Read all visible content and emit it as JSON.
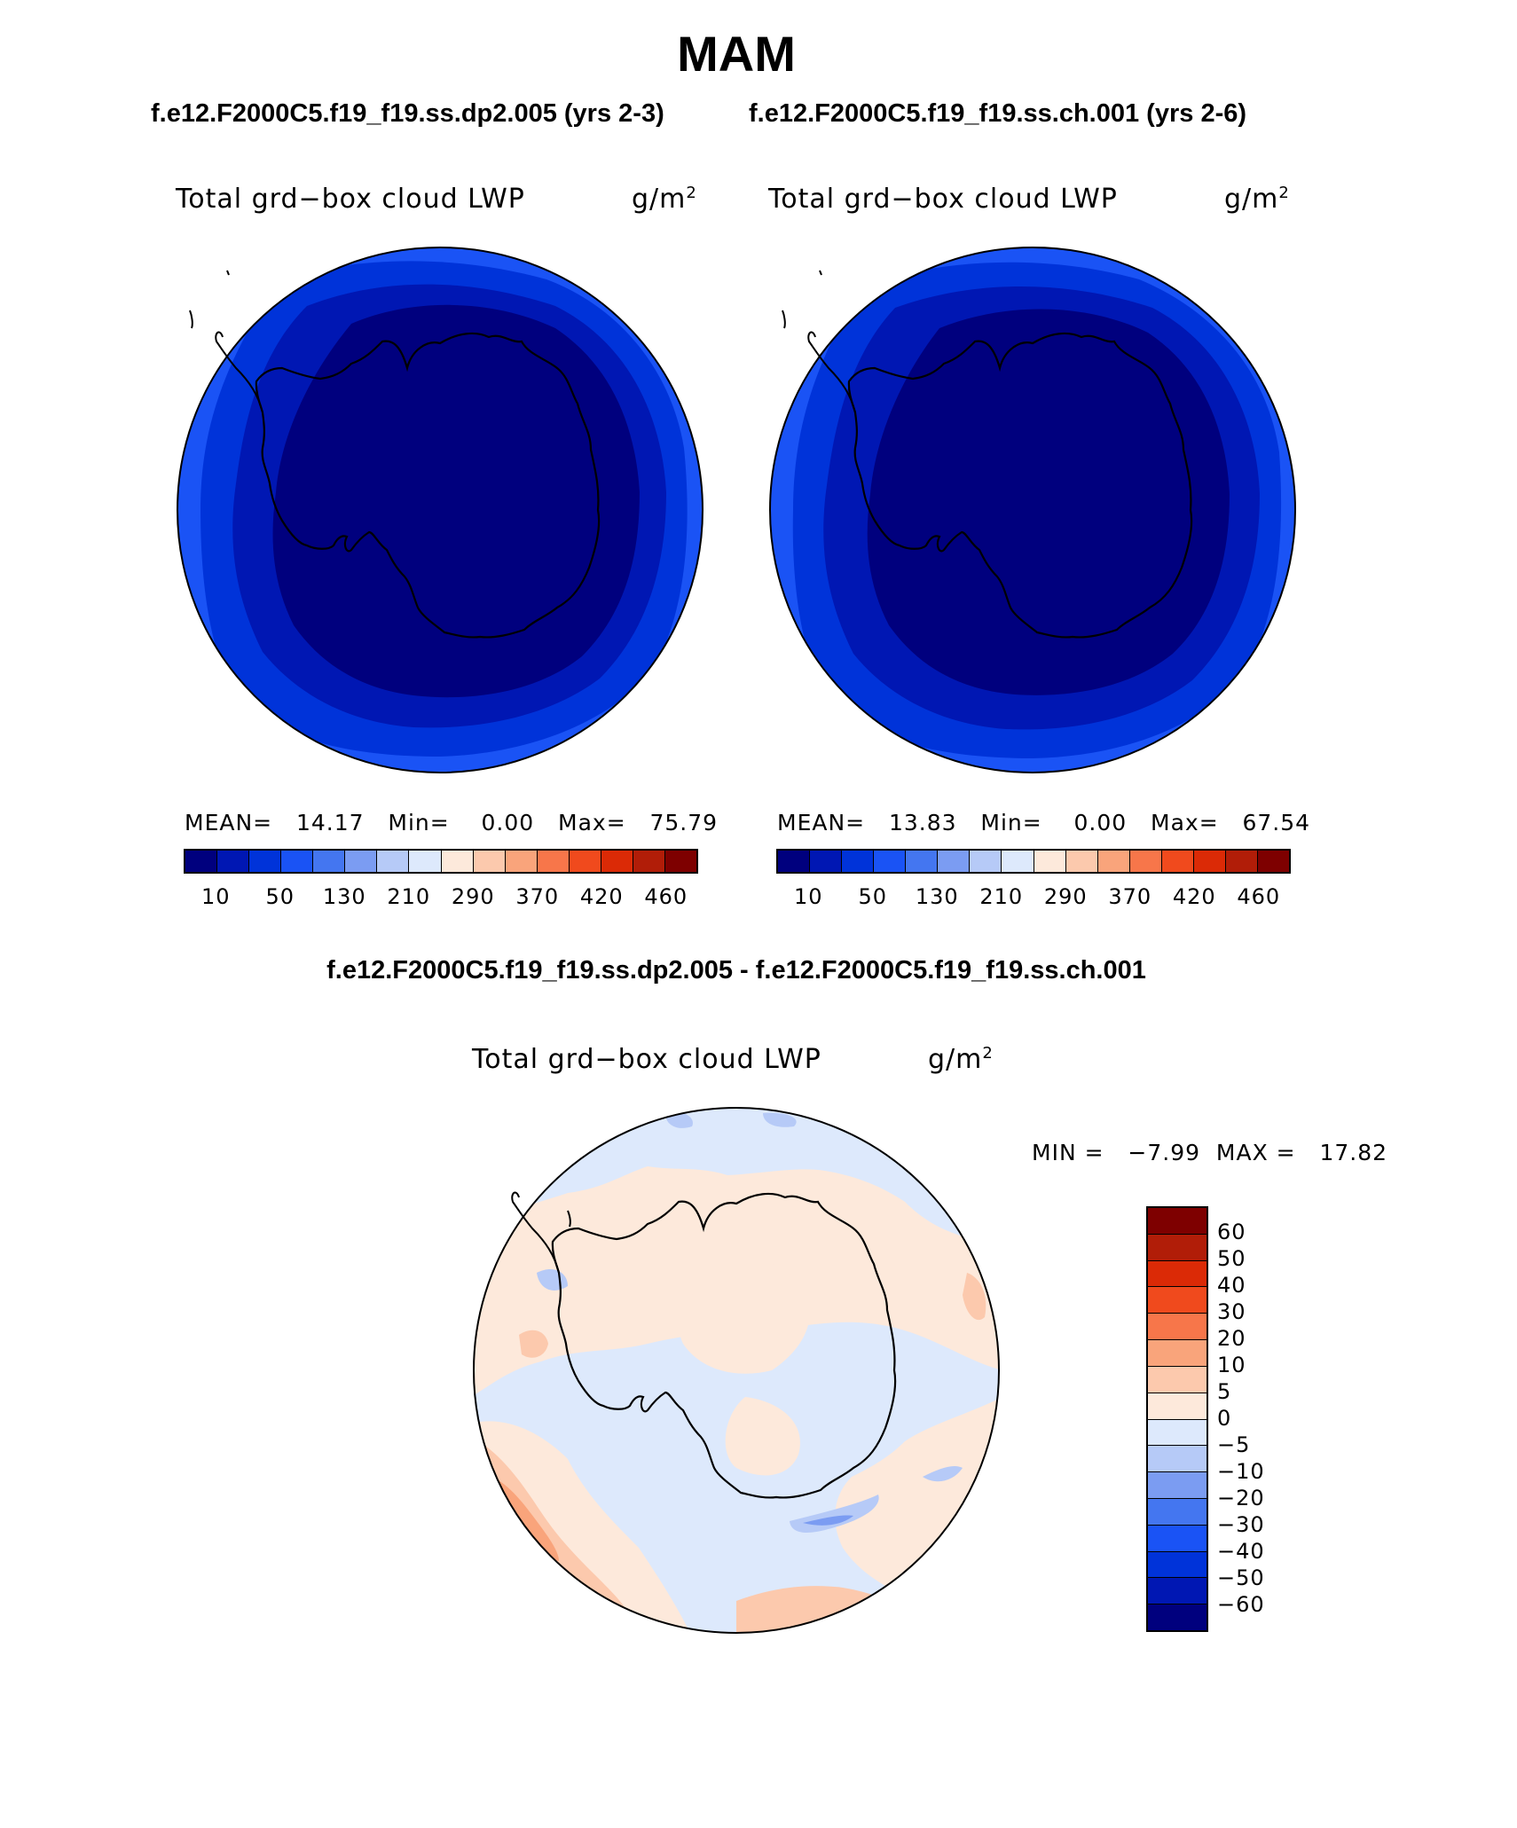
{
  "header": {
    "season": "MAM",
    "case_left": "f.e12.F2000C5.f19_f19.ss.dp2.005 (yrs 2-3)",
    "case_right": "f.e12.F2000C5.f19_f19.ss.ch.001 (yrs 2-6)",
    "diff_title": "f.e12.F2000C5.f19_f19.ss.dp2.005 - f.e12.F2000C5.f19_f19.ss.ch.001"
  },
  "panels": [
    {
      "title": "Total grd−box cloud LWP",
      "unit_base": "g/m",
      "unit_exp": "2",
      "mean_label": "MEAN=",
      "mean": "14.17",
      "min_label": "Min=",
      "min": "0.00",
      "max_label": "Max=",
      "max": "75.79"
    },
    {
      "title": "Total grd−box cloud LWP",
      "unit_base": "g/m",
      "unit_exp": "2",
      "mean_label": "MEAN=",
      "mean": "13.83",
      "min_label": "Min=",
      "min": "0.00",
      "max_label": "Max=",
      "max": "67.54"
    }
  ],
  "diff_panel": {
    "title": "Total grd−box cloud LWP",
    "unit_base": "g/m",
    "unit_exp": "2",
    "min_label": "MIN =",
    "min": "−7.99",
    "max_label": "MAX =",
    "max": "17.82"
  },
  "abs_colorbar": {
    "colors": [
      "#00007e",
      "#0017b3",
      "#0033d9",
      "#1a53f5",
      "#4476f0",
      "#7b9cf2",
      "#b6caf7",
      "#dde9fc",
      "#fde9db",
      "#fcc9ad",
      "#f9a47b",
      "#f7764a",
      "#f04a1d",
      "#db2a06",
      "#b11d08",
      "#7e0000"
    ],
    "tick_labels": [
      "10",
      "50",
      "130",
      "210",
      "290",
      "370",
      "420",
      "460"
    ]
  },
  "diff_colorbar": {
    "colors_top_to_bottom": [
      "#7e0000",
      "#b11d08",
      "#db2a06",
      "#f04a1d",
      "#f7764a",
      "#f9a47b",
      "#fcc9ad",
      "#fde9db",
      "#dde9fc",
      "#b6caf7",
      "#7b9cf2",
      "#4476f0",
      "#1a53f5",
      "#0033d9",
      "#0017b3",
      "#00007e"
    ],
    "tick_labels_top_to_bottom": [
      "60",
      "50",
      "40",
      "30",
      "20",
      "10",
      "5",
      "0",
      "−5",
      "−10",
      "−20",
      "−30",
      "−40",
      "−50",
      "−60"
    ]
  },
  "map_colors": {
    "ring_outer": "#1a53f5",
    "ring_mid": "#0033d9",
    "ring_inner": "#0017b3",
    "interior": "#00007e",
    "diff_base": "#dde9fc",
    "diff_pos_weak": "#fde9db",
    "diff_pos_mid": "#fcc9ad",
    "diff_pos_strong": "#f9a47b",
    "diff_neg_mid": "#b6caf7",
    "diff_neg_strong": "#7b9cf2"
  }
}
